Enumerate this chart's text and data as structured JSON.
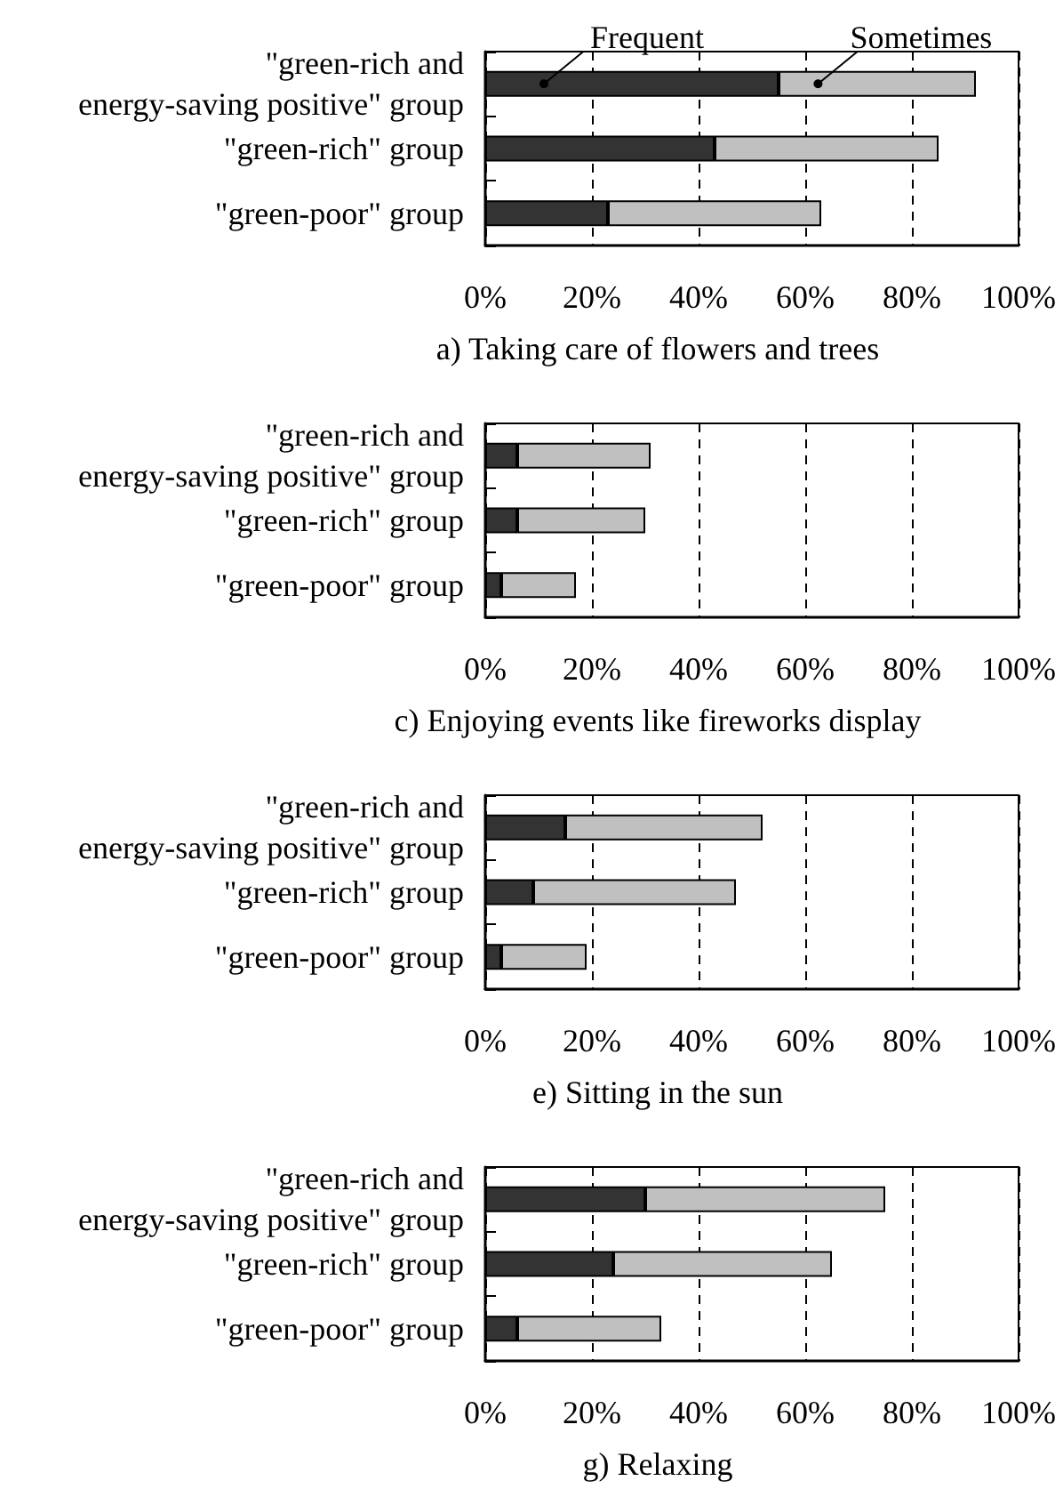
{
  "chart_data": [
    {
      "type": "bar",
      "orientation": "horizontal",
      "stacked": true,
      "title": "a) Taking care of flowers and trees",
      "categories": [
        "\"green-rich and\nenergy-saving positive\" group",
        "\"green-rich\" group",
        "\"green-poor\" group"
      ],
      "series": [
        {
          "name": "Frequent",
          "color": "#333333",
          "values": [
            55,
            43,
            23
          ]
        },
        {
          "name": "Sometimes",
          "color": "#c0c0c0",
          "values": [
            37,
            42,
            40
          ]
        }
      ],
      "xlim": [
        0,
        100
      ],
      "xticks": [
        {
          "value": 0,
          "label": "0%"
        },
        {
          "value": 20,
          "label": "20%"
        },
        {
          "value": 40,
          "label": "40%"
        },
        {
          "value": 60,
          "label": "60%"
        },
        {
          "value": 80,
          "label": "80%"
        },
        {
          "value": 100,
          "label": "100%"
        }
      ],
      "grid": "x"
    },
    {
      "type": "bar",
      "orientation": "horizontal",
      "stacked": true,
      "title": "c) Enjoying events like fireworks display",
      "categories": [
        "\"green-rich and\nenergy-saving positive\" group",
        "\"green-rich\" group",
        "\"green-poor\" group"
      ],
      "series": [
        {
          "color": "#333333",
          "values": [
            6,
            6,
            3
          ]
        },
        {
          "color": "#c0c0c0",
          "values": [
            25,
            24,
            14
          ]
        }
      ],
      "xlim": [
        0,
        100
      ],
      "xticks": [
        {
          "value": 0,
          "label": "0%"
        },
        {
          "value": 20,
          "label": "20%"
        },
        {
          "value": 40,
          "label": "40%"
        },
        {
          "value": 60,
          "label": "60%"
        },
        {
          "value": 80,
          "label": "80%"
        },
        {
          "value": 100,
          "label": "100%"
        }
      ],
      "grid": "x"
    },
    {
      "type": "bar",
      "orientation": "horizontal",
      "stacked": true,
      "title": "e) Sitting in the sun",
      "categories": [
        "\"green-rich and\nenergy-saving positive\" group",
        "\"green-rich\" group",
        "\"green-poor\" group"
      ],
      "series": [
        {
          "color": "#333333",
          "values": [
            15,
            9,
            3
          ]
        },
        {
          "color": "#c0c0c0",
          "values": [
            37,
            38,
            16
          ]
        }
      ],
      "xlim": [
        0,
        100
      ],
      "xticks": [
        {
          "value": 0,
          "label": "0%"
        },
        {
          "value": 20,
          "label": "20%"
        },
        {
          "value": 40,
          "label": "40%"
        },
        {
          "value": 60,
          "label": "60%"
        },
        {
          "value": 80,
          "label": "80%"
        },
        {
          "value": 100,
          "label": "100%"
        }
      ],
      "grid": "x"
    },
    {
      "type": "bar",
      "orientation": "horizontal",
      "stacked": true,
      "title": "g) Relaxing",
      "categories": [
        "\"green-rich and\nenergy-saving positive\" group",
        "\"green-rich\" group",
        "\"green-poor\" group"
      ],
      "series": [
        {
          "color": "#333333",
          "values": [
            30,
            24,
            6
          ]
        },
        {
          "color": "#c0c0c0",
          "values": [
            45,
            41,
            27
          ]
        }
      ],
      "xlim": [
        0,
        100
      ],
      "xticks": [
        {
          "value": 0,
          "label": "0%"
        },
        {
          "value": 20,
          "label": "20%"
        },
        {
          "value": 40,
          "label": "40%"
        },
        {
          "value": 60,
          "label": "60%"
        },
        {
          "value": 80,
          "label": "80%"
        },
        {
          "value": 100,
          "label": "100%"
        }
      ],
      "grid": "x"
    }
  ]
}
